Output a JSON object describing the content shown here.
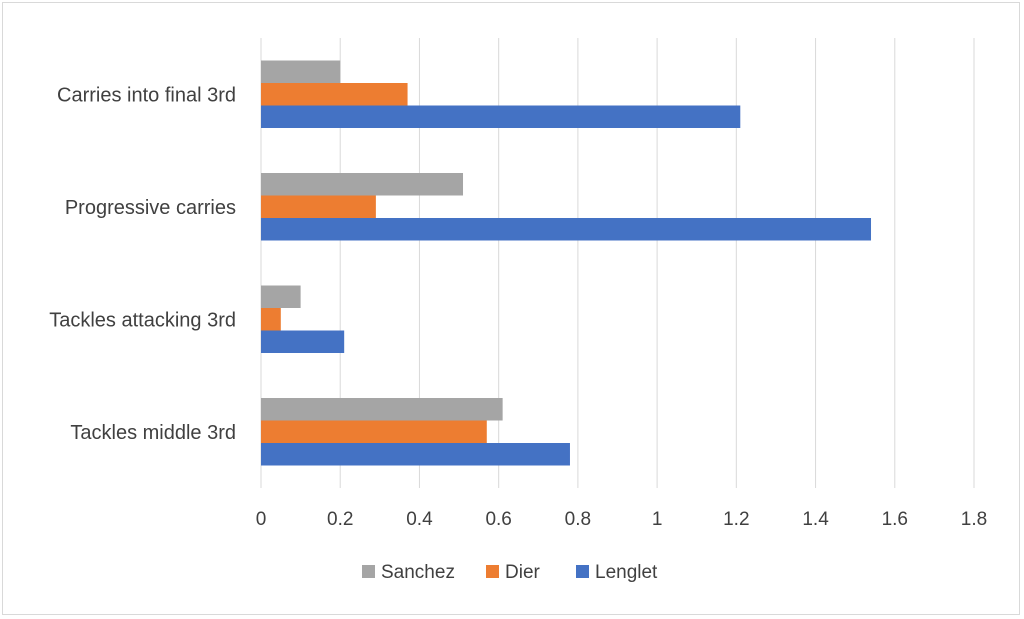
{
  "chart_data": {
    "type": "bar",
    "orientation": "horizontal",
    "categories": [
      "Tackles middle 3rd",
      "Tackles attacking 3rd",
      "Progressive carries",
      "Carries into final 3rd"
    ],
    "series": [
      {
        "name": "Lenglet",
        "color": "#4472C4",
        "values": [
          0.78,
          0.21,
          1.54,
          1.21
        ]
      },
      {
        "name": "Dier",
        "color": "#ED7D31",
        "values": [
          0.57,
          0.05,
          0.29,
          0.37
        ]
      },
      {
        "name": "Sanchez",
        "color": "#A5A5A5",
        "values": [
          0.61,
          0.1,
          0.51,
          0.2
        ]
      }
    ],
    "xlim": [
      0,
      1.8
    ],
    "xticks": [
      "0",
      "0.2",
      "0.4",
      "0.6",
      "0.8",
      "1",
      "1.2",
      "1.4",
      "1.6",
      "1.8"
    ],
    "grid": true,
    "legend_position": "bottom",
    "legend_order": [
      "Sanchez",
      "Dier",
      "Lenglet"
    ],
    "title": "",
    "xlabel": "",
    "ylabel": ""
  }
}
